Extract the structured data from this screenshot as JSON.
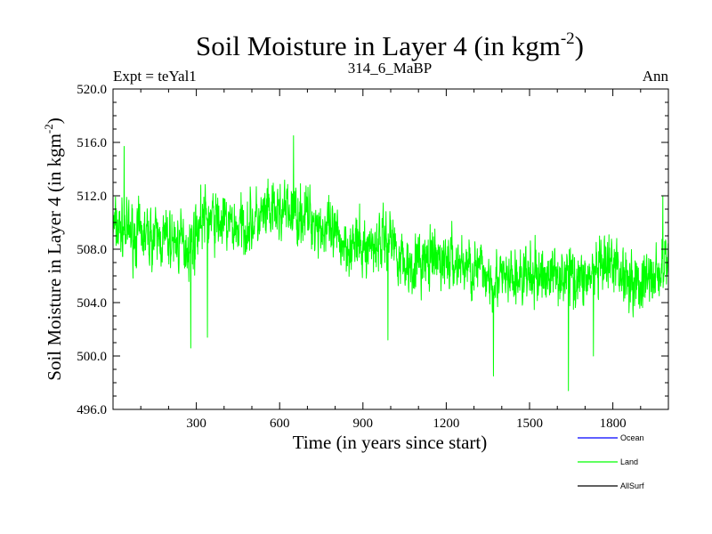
{
  "chart_data": {
    "type": "line",
    "title": "Soil Moisture in Layer 4 (in kgm",
    "title_sup": "-2",
    "title_close": ")",
    "subtitle_left": "Expt = teYal1",
    "subtitle_center": "314_6_MaBP",
    "subtitle_right": "Ann",
    "xlabel": "Time (in years since start)",
    "ylabel": "Soil Moisture in Layer 4 (in kgm",
    "ylabel_sup": "-2",
    "ylabel_close": ")",
    "xlim": [
      0,
      2000
    ],
    "ylim": [
      496.0,
      520.0
    ],
    "x_ticks": [
      300,
      600,
      900,
      1200,
      1500,
      1800
    ],
    "x_tick_labels": [
      "300",
      "600",
      "900",
      "1200",
      "1500",
      "1800"
    ],
    "y_ticks": [
      496.0,
      500.0,
      504.0,
      508.0,
      512.0,
      516.0,
      520.0
    ],
    "y_tick_labels": [
      "496.0",
      "500.0",
      "504.0",
      "508.0",
      "512.0",
      "516.0",
      "520.0"
    ],
    "legend": [
      {
        "name": "Ocean",
        "color": "#0000ff"
      },
      {
        "name": "Land",
        "color": "#00ff00"
      },
      {
        "name": "AllSurf",
        "color": "#000000"
      }
    ],
    "series": [
      {
        "name": "Land",
        "color": "#00ff00",
        "x_start": 0,
        "x_step": 20,
        "trend": [
          [
            0,
            509.6
          ],
          [
            100,
            509.0
          ],
          [
            200,
            508.7
          ],
          [
            280,
            508.3
          ],
          [
            320,
            510.4
          ],
          [
            450,
            509.6
          ],
          [
            600,
            510.8
          ],
          [
            700,
            510.6
          ],
          [
            800,
            508.8
          ],
          [
            900,
            508.0
          ],
          [
            1000,
            509.0
          ],
          [
            1050,
            506.8
          ],
          [
            1200,
            507.2
          ],
          [
            1300,
            506.6
          ],
          [
            1400,
            505.6
          ],
          [
            1500,
            505.9
          ],
          [
            1600,
            506.2
          ],
          [
            1700,
            505.8
          ],
          [
            1800,
            506.8
          ],
          [
            1900,
            505.3
          ],
          [
            2000,
            506.8
          ]
        ],
        "amplitude": 2.6,
        "seed": 7,
        "annual_resolution": 1,
        "extremes": [
          [
            40,
            515.7
          ],
          [
            280,
            500.6
          ],
          [
            340,
            501.4
          ],
          [
            650,
            516.5
          ],
          [
            990,
            501.2
          ],
          [
            1370,
            498.5
          ],
          [
            1640,
            497.4
          ],
          [
            1730,
            500.0
          ],
          [
            1980,
            512.0
          ]
        ]
      },
      {
        "name": "Ocean",
        "color": "#0000ff",
        "values": []
      },
      {
        "name": "AllSurf",
        "color": "#000000",
        "values": []
      }
    ]
  }
}
